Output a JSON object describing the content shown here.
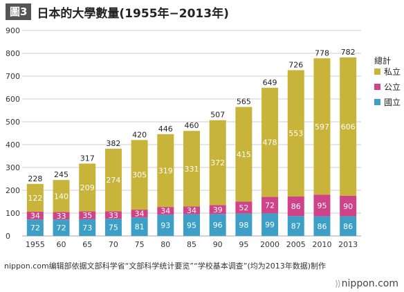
{
  "figure_label": "圖3",
  "title": "日本的大學數量(1955年−2013年)",
  "source": "nippon.com编辑部依据文部科学省“文部科学统计要览”“学校基本调查”(均为2013年数据)制作",
  "brand": "nippon.com",
  "brand_mark": "⟩⟩",
  "chart_data": {
    "type": "bar",
    "stacked": true,
    "categories": [
      "1955",
      "60",
      "65",
      "70",
      "75",
      "80",
      "85",
      "90",
      "95",
      "2000",
      "2005",
      "2010",
      "2013"
    ],
    "series": [
      {
        "name": "國立",
        "color": "#3d9fc6",
        "values": [
          72,
          72,
          73,
          75,
          81,
          93,
          95,
          96,
          98,
          99,
          87,
          86,
          86
        ]
      },
      {
        "name": "公立",
        "color": "#cf4488",
        "values": [
          34,
          33,
          35,
          33,
          34,
          34,
          34,
          39,
          52,
          72,
          86,
          95,
          90
        ]
      },
      {
        "name": "私立",
        "color": "#c8b43a",
        "values": [
          122,
          140,
          209,
          274,
          305,
          319,
          331,
          372,
          415,
          478,
          553,
          597,
          606
        ]
      }
    ],
    "totals": [
      228,
      245,
      317,
      382,
      420,
      446,
      460,
      507,
      565,
      649,
      726,
      778,
      782
    ],
    "legend_title": "總計",
    "ylim": [
      0,
      900
    ],
    "yticks": [
      0,
      100,
      200,
      300,
      400,
      500,
      600,
      700,
      800,
      900
    ],
    "grid": true,
    "legend_position": "right"
  }
}
